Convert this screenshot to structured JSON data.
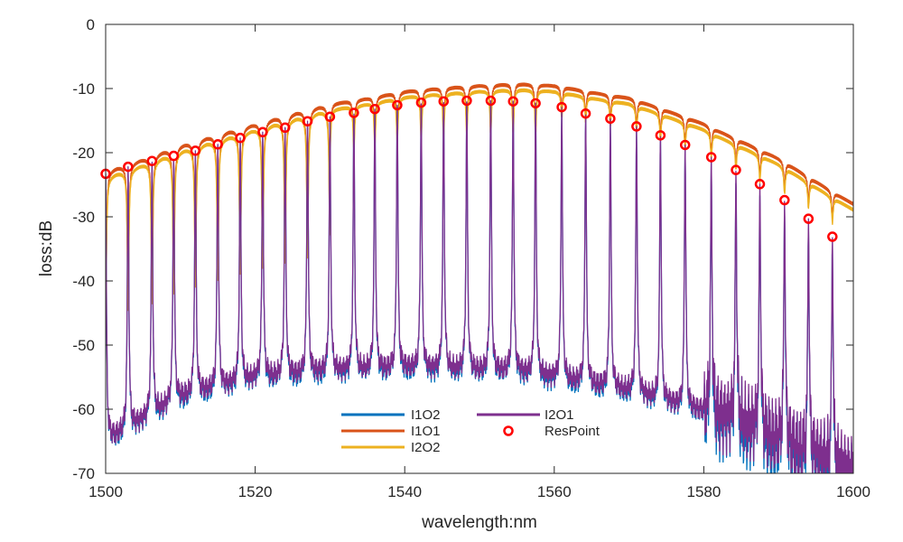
{
  "chart_data": {
    "type": "line",
    "title": "",
    "xlabel": "wavelength:nm",
    "ylabel": "loss:dB",
    "xlim": [
      1500,
      1600
    ],
    "ylim": [
      -70,
      0
    ],
    "xticks": [
      1500,
      1520,
      1540,
      1560,
      1580,
      1600
    ],
    "yticks": [
      0,
      -10,
      -20,
      -30,
      -40,
      -50,
      -60,
      -70
    ],
    "xtick_labels": [
      "1500",
      "1520",
      "1540",
      "1560",
      "1580",
      "1600"
    ],
    "ytick_labels": [
      "0",
      "-10",
      "-20",
      "-30",
      "-40",
      "-50",
      "-60",
      "-70"
    ],
    "grid": false,
    "legend_position": "bottom-center",
    "series": [
      {
        "name": "I1O2",
        "color": "#0072BD",
        "role": "drop-port spectrum"
      },
      {
        "name": "I1O1",
        "color": "#D95319",
        "role": "through-port spectrum"
      },
      {
        "name": "I2O2",
        "color": "#EDB120",
        "role": "through-port spectrum"
      },
      {
        "name": "I2O1",
        "color": "#7E2F8E",
        "role": "drop-port spectrum"
      },
      {
        "name": "ResPoint",
        "color": "#FF0000",
        "marker": "o"
      }
    ],
    "envelope": {
      "x": [
        1500,
        1510,
        1520,
        1530,
        1540,
        1545,
        1550,
        1555,
        1560,
        1570,
        1580,
        1590,
        1600
      ],
      "y_top": [
        -23,
        -19,
        -15.5,
        -12.5,
        -10.5,
        -10,
        -9.5,
        -9.3,
        -9.6,
        -11.5,
        -15.5,
        -21,
        -28
      ]
    },
    "drop_floor": [
      -65,
      -58,
      -55,
      -54,
      -53.5,
      -54,
      -57,
      -62,
      -70
    ],
    "drop_floor_x": [
      1500,
      1510,
      1520,
      1530,
      1540,
      1555,
      1570,
      1585,
      1600
    ],
    "resonance_points": {
      "x": [
        1500.0,
        1503.0,
        1506.2,
        1509.1,
        1512.0,
        1515.0,
        1518.0,
        1521.0,
        1524.0,
        1527.0,
        1530.0,
        1533.2,
        1536.0,
        1539.0,
        1542.2,
        1545.2,
        1548.3,
        1551.5,
        1554.5,
        1557.5,
        1561.0,
        1564.2,
        1567.5,
        1571.0,
        1574.2,
        1577.5,
        1581.0,
        1584.3,
        1587.5,
        1590.8,
        1594.0,
        1597.2
      ],
      "y": [
        -23.3,
        -22.2,
        -21.3,
        -20.5,
        -19.7,
        -18.7,
        -17.7,
        -16.8,
        -16.1,
        -15.1,
        -14.4,
        -13.8,
        -13.2,
        -12.6,
        -12.2,
        -12.0,
        -11.9,
        -11.9,
        -12.0,
        -12.3,
        -12.9,
        -13.9,
        -14.7,
        -15.9,
        -17.3,
        -18.8,
        -20.7,
        -22.7,
        -24.9,
        -27.4,
        -30.3,
        -33.1
      ]
    }
  }
}
